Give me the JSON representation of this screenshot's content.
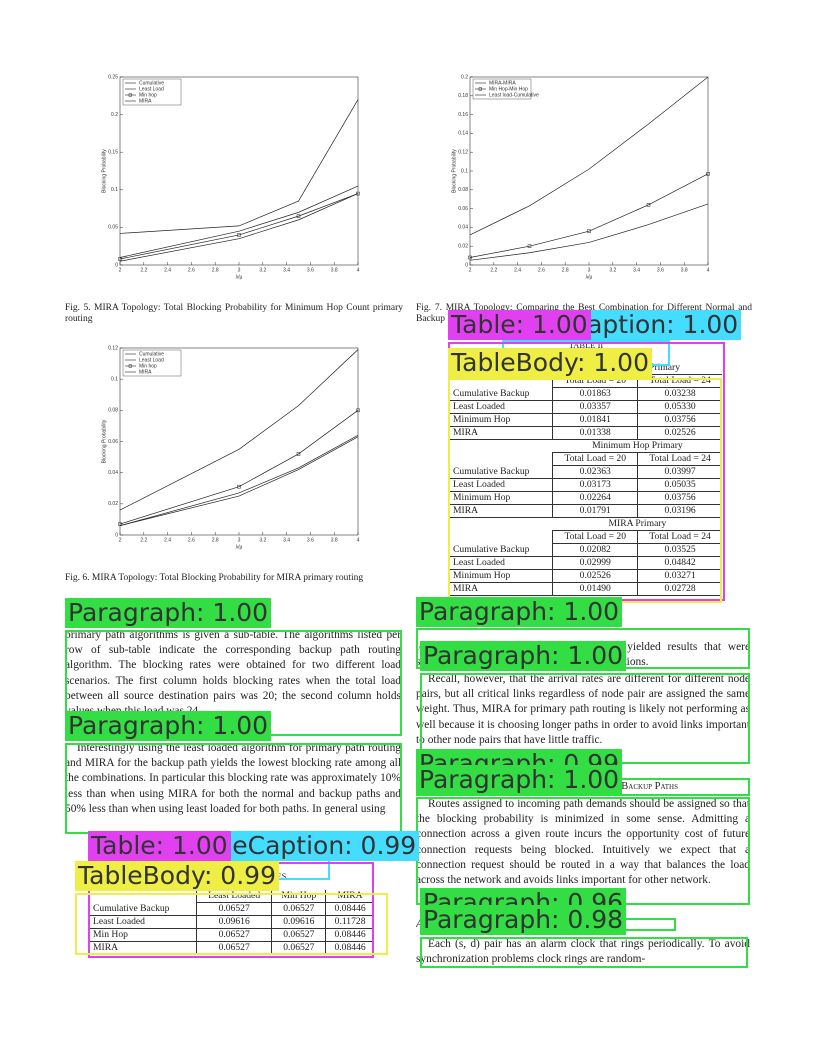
{
  "figures": [
    {
      "type": "line",
      "caption": "Fig. 5.   MIRA Topology: Total Blocking Probability for Minimum Hop Count primary routing",
      "ylabel": "Blocking Probability",
      "xlabel": "λ/μ",
      "x": [
        2,
        3,
        3.5,
        4
      ],
      "xlim": [
        2,
        4
      ],
      "ylim": [
        0,
        0.25
      ],
      "xticks": [
        2,
        2.2,
        2.4,
        2.6,
        2.8,
        3,
        3.2,
        3.4,
        3.6,
        3.8,
        4
      ],
      "yticks": [
        0,
        0.05,
        0.1,
        0.15,
        0.2,
        0.25
      ],
      "legend": "upper left",
      "series": [
        {
          "name": "Cumulative",
          "color": "#222",
          "values": [
            0.01,
            0.045,
            0.07,
            0.105
          ]
        },
        {
          "name": "Least Load",
          "color": "#222",
          "values": [
            0.042,
            0.052,
            0.085,
            0.22
          ]
        },
        {
          "name": "Min hop",
          "color": "#222",
          "marker": "square",
          "values": [
            0.008,
            0.04,
            0.065,
            0.095
          ]
        },
        {
          "name": "MIRA",
          "color": "#222",
          "values": [
            0.005,
            0.035,
            0.06,
            0.095
          ]
        }
      ]
    },
    {
      "type": "line",
      "caption": "Fig. 7.   MIRA Topology: Comparing the Best Combination for Different Normal and Backup Routing",
      "ylabel": "Blocking Probability",
      "xlabel": "λ/μ",
      "x": [
        2,
        2.5,
        3,
        3.5,
        4
      ],
      "xlim": [
        2,
        4
      ],
      "ylim": [
        0,
        0.2
      ],
      "xticks": [
        2,
        2.2,
        2.4,
        2.6,
        2.8,
        3,
        3.2,
        3.4,
        3.6,
        3.8,
        4
      ],
      "yticks": [
        0,
        0.02,
        0.04,
        0.06,
        0.08,
        0.1,
        0.12,
        0.14,
        0.16,
        0.18,
        0.2
      ],
      "legend": "upper left",
      "series": [
        {
          "name": "MIRA-MIRA",
          "color": "#222",
          "values": [
            0.005,
            0.013,
            0.024,
            0.043,
            0.065
          ]
        },
        {
          "name": "Min Hop-Min Hop",
          "color": "#222",
          "marker": "square",
          "values": [
            0.008,
            0.02,
            0.036,
            0.064,
            0.097
          ]
        },
        {
          "name": "Least load-Cumulative",
          "color": "#222",
          "values": [
            0.032,
            0.063,
            0.102,
            0.15,
            0.2
          ]
        }
      ]
    },
    {
      "type": "line",
      "caption": "Fig. 6.   MIRA Topology: Total Blocking Probability for MIRA primary routing",
      "ylabel": "Blocking Probability",
      "xlabel": "λ/μ",
      "x": [
        2,
        3,
        3.5,
        4
      ],
      "xlim": [
        2,
        4
      ],
      "ylim": [
        0,
        0.12
      ],
      "xticks": [
        2,
        2.2,
        2.4,
        2.6,
        2.8,
        3,
        3.2,
        3.4,
        3.6,
        3.8,
        4
      ],
      "yticks": [
        0,
        0.02,
        0.04,
        0.06,
        0.08,
        0.1,
        0.12
      ],
      "legend": "upper left",
      "series": [
        {
          "name": "Cumulative",
          "color": "#222",
          "values": [
            0.006,
            0.025,
            0.042,
            0.063
          ]
        },
        {
          "name": "Least Load",
          "color": "#222",
          "values": [
            0.016,
            0.055,
            0.083,
            0.119
          ]
        },
        {
          "name": "Min hop",
          "color": "#222",
          "marker": "square",
          "values": [
            0.007,
            0.031,
            0.052,
            0.08
          ]
        },
        {
          "name": "MIRA",
          "color": "#222",
          "values": [
            0.006,
            0.027,
            0.043,
            0.064
          ]
        }
      ]
    }
  ],
  "table_2": {
    "caption": [
      "TABLE II",
      "BLOCKING PROBABILITIES"
    ],
    "sections": [
      {
        "title": "Least Loaded Primary",
        "columns": [
          "Total Load = 20",
          "Total Load = 24"
        ],
        "rows": [
          [
            "Cumulative Backup",
            "0.01863",
            "0.03238"
          ],
          [
            "Least Loaded",
            "0.03357",
            "0.05330"
          ],
          [
            "Minimum Hop",
            "0.01841",
            "0.03756"
          ],
          [
            "MIRA",
            "0.01338",
            "0.02526"
          ]
        ]
      },
      {
        "title": "Minimum Hop Primary",
        "columns": [
          "Total Load = 20",
          "Total Load = 24"
        ],
        "rows": [
          [
            "Cumulative Backup",
            "0.02363",
            "0.03997"
          ],
          [
            "Least Loaded",
            "0.03173",
            "0.05035"
          ],
          [
            "Minimum Hop",
            "0.02264",
            "0.03756"
          ],
          [
            "MIRA",
            "0.01791",
            "0.03196"
          ]
        ]
      },
      {
        "title": "MIRA Primary",
        "columns": [
          "Total Load = 20",
          "Total Load = 24"
        ],
        "rows": [
          [
            "Cumulative Backup",
            "0.02082",
            "0.03525"
          ],
          [
            "Least Loaded",
            "0.02999",
            "0.04842"
          ],
          [
            "Minimum Hop",
            "0.02526",
            "0.03271"
          ],
          [
            "MIRA",
            "0.01490",
            "0.02728"
          ]
        ]
      }
    ]
  },
  "table_1": {
    "caption": [
      "TABLE I",
      "BLOCKING PROBABILITIES"
    ],
    "columns": [
      "Least Loaded",
      "Min Hop",
      "MIRA"
    ],
    "rows": [
      [
        "Cumulative Backup",
        "0.06527",
        "0.06527",
        "0.08446"
      ],
      [
        "Least Loaded",
        "0.09616",
        "0.09616",
        "0.11728"
      ],
      [
        "Min Hop",
        "0.06527",
        "0.06527",
        "0.08446"
      ],
      [
        "MIRA",
        "0.06527",
        "0.06527",
        "0.08446"
      ]
    ]
  },
  "paragraphs": [
    "primary path algorithms is given a sub-table. The algorithms listed per row of sub-table indicate the corresponding backup path routing algorithm. The blocking rates were obtained for two different load scenarios. The first column holds blocking rates when the total load between all source destination pairs was 20; the second column holds values when this load was 24.",
    "Interestingly using the least loaded algorithm for primary path routing and MIRA for the backup path yields the lowest blocking rate among all the combinations. In particular this blocking rate was approximately 10% less than when using MIRA for both the normal and backup paths and 50% less than when using least loaded for both paths. In general using",
    "least loaded routing for the backup path yielded results that were significantly better than all the other combinations.",
    "Recall, however, that the arrival rates are different for different node pairs, but all critical links regardless of node pair are assigned the same weight. Thus, MIRA for primary path routing is likely not performing as well because it is choosing longer paths in order to avoid links important to other node pairs that have little traffic.",
    "V. Adaptive Reconfiguration of Backup Paths",
    "Routes assigned to incoming path demands should be assigned so that the blocking probability is minimized in some sense. Admitting a connection across a given route incurs the opportunity cost of future connection requests being blocked. Intuitively we expect that a connection request should be routed in a way that balances the load across the network and avoids links important for other network.",
    "A. Reconfiguration algorithm at the source",
    "Each (s, d) pair has an alarm clock that rings periodically. To avoid synchronization problems clock rings are random-"
  ],
  "detections": [
    {
      "label": "TableCaption: 1.00",
      "color": "#44ddff"
    },
    {
      "label": "Table: 1.00",
      "color": "#e040f0"
    },
    {
      "label": "TableBody: 1.00",
      "color": "#eeee44"
    },
    {
      "label": "Paragraph: 1.00",
      "color": "#33dd44"
    },
    {
      "label": "Paragraph: 1.00",
      "color": "#33dd44"
    },
    {
      "label": "TableCaption: 0.99",
      "color": "#44ddff"
    },
    {
      "label": "Table: 1.00",
      "color": "#e040f0"
    },
    {
      "label": "TableBody: 0.99",
      "color": "#eeee44"
    },
    {
      "label": "Paragraph: 1.00",
      "color": "#33dd44"
    },
    {
      "label": "Paragraph: 1.00",
      "color": "#33dd44"
    },
    {
      "label": "Paragraph: 0.99",
      "color": "#33dd44"
    },
    {
      "label": "Paragraph: 1.00",
      "color": "#33dd44"
    },
    {
      "label": "Paragraph: 0.96",
      "color": "#33dd44"
    },
    {
      "label": "Paragraph: 0.98",
      "color": "#33dd44"
    }
  ]
}
